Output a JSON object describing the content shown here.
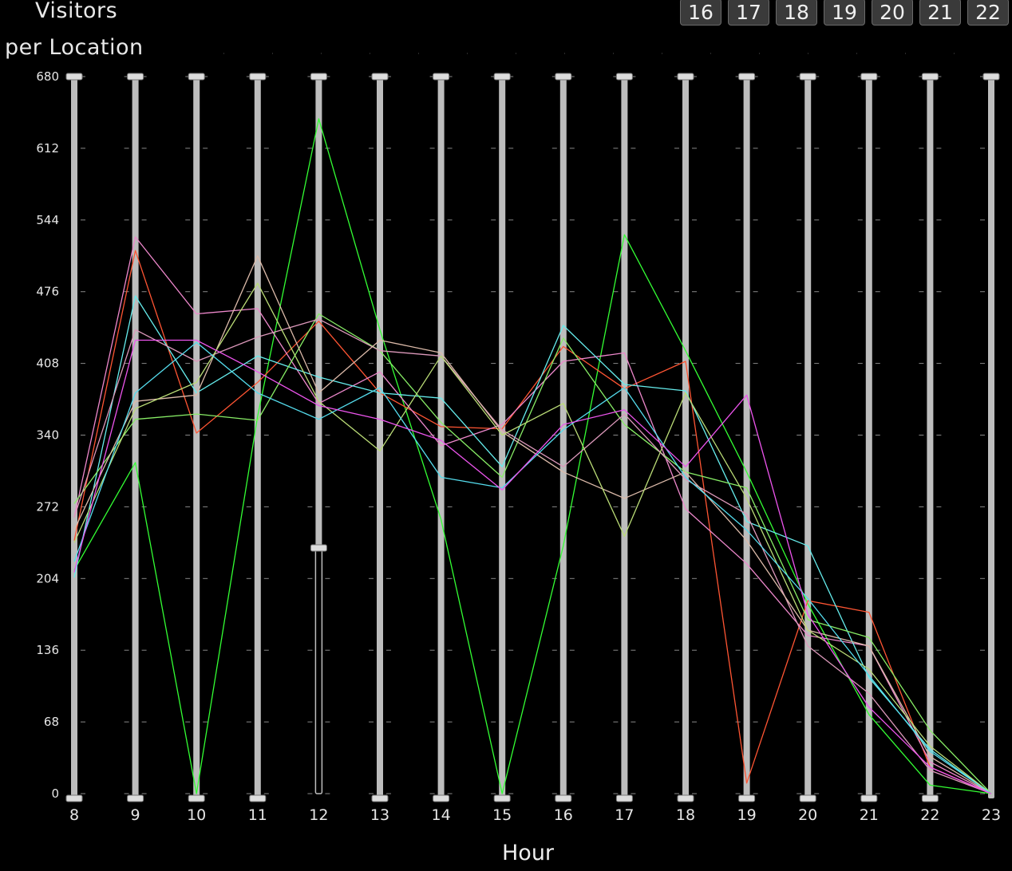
{
  "title_line1": "Visitors",
  "title_line2": "per Location",
  "hour_buttons": [
    "16",
    "17",
    "18",
    "19",
    "20",
    "21",
    "22"
  ],
  "xlabel": "Hour",
  "colors": {
    "background": "#000000",
    "axis_bar": "#bdbdbd",
    "text": "#e6e6e6"
  },
  "chart_data": {
    "type": "line",
    "layout": "parallel-coordinates",
    "title": "Visitors per Location",
    "xlabel": "Hour",
    "ylabel": "",
    "x": [
      8,
      9,
      10,
      11,
      12,
      13,
      14,
      15,
      16,
      17,
      18,
      19,
      20,
      21,
      22,
      23
    ],
    "ylim": [
      0,
      680
    ],
    "yticks": [
      0,
      68,
      136,
      204,
      272,
      340,
      408,
      476,
      544,
      612,
      680
    ],
    "series": [
      {
        "color": "#33ff33",
        "values": [
          212,
          314,
          0,
          358,
          640,
          440,
          260,
          0,
          235,
          530,
          420,
          305,
          180,
          75,
          8,
          0
        ]
      },
      {
        "color": "#ff5533",
        "values": [
          240,
          515,
          342,
          390,
          448,
          380,
          348,
          346,
          424,
          384,
          410,
          10,
          183,
          172,
          25,
          0
        ]
      },
      {
        "color": "#ee88cc",
        "values": [
          262,
          528,
          455,
          460,
          370,
          400,
          330,
          350,
          410,
          418,
          270,
          218,
          150,
          140,
          30,
          0
        ]
      },
      {
        "color": "#66eeee",
        "values": [
          205,
          472,
          380,
          415,
          395,
          380,
          375,
          310,
          444,
          388,
          382,
          258,
          235,
          110,
          42,
          0
        ]
      },
      {
        "color": "#88ee66",
        "values": [
          275,
          355,
          360,
          354,
          455,
          420,
          352,
          300,
          432,
          350,
          305,
          290,
          165,
          148,
          60,
          0
        ]
      },
      {
        "color": "#dd99bb",
        "values": [
          262,
          440,
          410,
          433,
          450,
          420,
          415,
          345,
          310,
          360,
          298,
          265,
          140,
          95,
          22,
          0
        ]
      },
      {
        "color": "#ddbbaa",
        "values": [
          250,
          372,
          378,
          510,
          380,
          430,
          418,
          343,
          305,
          280,
          305,
          240,
          155,
          140,
          35,
          0
        ]
      },
      {
        "color": "#bbdd77",
        "values": [
          238,
          365,
          390,
          484,
          372,
          325,
          415,
          340,
          370,
          244,
          380,
          280,
          155,
          118,
          45,
          0
        ]
      },
      {
        "color": "#55ddee",
        "values": [
          220,
          380,
          428,
          380,
          355,
          385,
          300,
          290,
          345,
          385,
          300,
          250,
          185,
          112,
          40,
          0
        ]
      },
      {
        "color": "#ee55ee",
        "values": [
          210,
          430,
          430,
          400,
          368,
          355,
          335,
          288,
          350,
          364,
          310,
          378,
          170,
          82,
          25,
          0
        ]
      }
    ],
    "filter_marker": {
      "x": 12,
      "y": 233
    }
  }
}
